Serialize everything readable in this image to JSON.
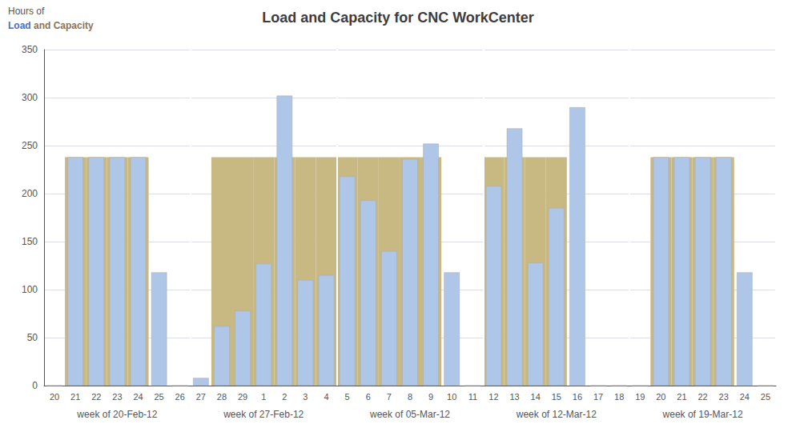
{
  "chart_data": {
    "type": "bar",
    "title": "Load and Capacity for CNC WorkCenter",
    "categories": [
      "20",
      "21",
      "22",
      "23",
      "24",
      "25",
      "26",
      "27",
      "28",
      "29",
      "1",
      "2",
      "3",
      "4",
      "5",
      "6",
      "7",
      "8",
      "9",
      "10",
      "11",
      "12",
      "13",
      "14",
      "15",
      "16",
      "17",
      "18",
      "19",
      "20",
      "21",
      "22",
      "23",
      "24",
      "25"
    ],
    "group_labels": [
      "week of 20-Feb-12",
      "week of 27-Feb-12",
      "week of 05-Mar-12",
      "week of 12-Mar-12",
      "week of 19-Mar-12"
    ],
    "series": [
      {
        "name": "Load",
        "color": "#aec6e8",
        "values": [
          0,
          238,
          238,
          238,
          238,
          118,
          0,
          8,
          62,
          78,
          127,
          302,
          110,
          115,
          218,
          193,
          140,
          236,
          252,
          118,
          0,
          208,
          268,
          128,
          185,
          290,
          0,
          0,
          0,
          238,
          238,
          238,
          238,
          118,
          0
        ]
      },
      {
        "name": "Capacity",
        "color": "#c8b882",
        "values": [
          0,
          238,
          238,
          238,
          238,
          0,
          0,
          0,
          238,
          238,
          238,
          238,
          238,
          238,
          238,
          238,
          238,
          238,
          238,
          0,
          0,
          238,
          238,
          238,
          238,
          0,
          0,
          0,
          0,
          238,
          238,
          238,
          238,
          0,
          0
        ]
      }
    ],
    "ylim": [
      0,
      350
    ],
    "yticks": [
      0,
      50,
      100,
      150,
      200,
      250,
      300,
      350
    ],
    "grid": true,
    "annotations": [
      {
        "text": "Hours of",
        "color": "#555555"
      },
      {
        "text": "Load",
        "color": "#4472c4"
      },
      {
        "text": "and Capacity",
        "color": "#8b7355"
      }
    ]
  }
}
